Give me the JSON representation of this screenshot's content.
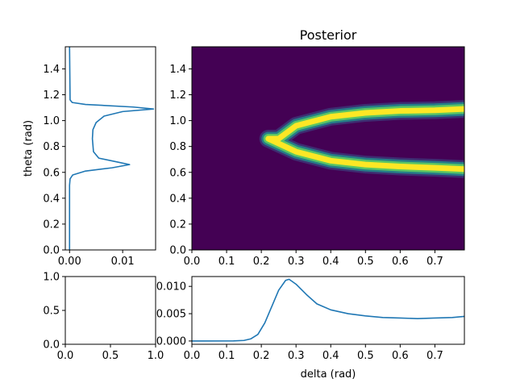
{
  "chart_data": [
    {
      "panel": "posterior-heatmap",
      "type": "heatmap",
      "title": "Posterior",
      "xlabel": "",
      "ylabel": "",
      "xlim": [
        0.0,
        0.785
      ],
      "ylim": [
        0.0,
        1.571
      ],
      "xticks": [
        "0.0",
        "0.1",
        "0.2",
        "0.3",
        "0.4",
        "0.5",
        "0.6",
        "0.7"
      ],
      "yticks": [
        "0.0",
        "0.2",
        "0.4",
        "0.6",
        "0.8",
        "1.0",
        "1.2",
        "1.4"
      ],
      "colormap": "viridis",
      "description_points": [
        {
          "delta": 0.22,
          "theta": 0.86
        },
        {
          "delta": 0.25,
          "theta": 0.86
        },
        {
          "delta": 0.3,
          "theta": 0.96
        },
        {
          "delta": 0.4,
          "theta": 1.03
        },
        {
          "delta": 0.5,
          "theta": 1.06
        },
        {
          "delta": 0.6,
          "theta": 1.075
        },
        {
          "delta": 0.7,
          "theta": 1.08
        },
        {
          "delta": 0.785,
          "theta": 1.09
        },
        {
          "delta": 0.3,
          "theta": 0.76
        },
        {
          "delta": 0.4,
          "theta": 0.69
        },
        {
          "delta": 0.5,
          "theta": 0.66
        },
        {
          "delta": 0.6,
          "theta": 0.645
        },
        {
          "delta": 0.7,
          "theta": 0.635
        },
        {
          "delta": 0.785,
          "theta": 0.625
        }
      ]
    },
    {
      "panel": "theta-marginal",
      "type": "line",
      "xlabel": "",
      "ylabel": "theta (rad)",
      "xlim": [
        -0.0008,
        0.0162
      ],
      "ylim": [
        0.0,
        1.571
      ],
      "xticks": [
        {
          "value": 0.0,
          "label": "0.00"
        },
        {
          "value": 0.01,
          "label": "0.01"
        }
      ],
      "yticks": [
        "0.0",
        "0.2",
        "0.4",
        "0.6",
        "0.8",
        "1.0",
        "1.2",
        "1.4"
      ],
      "series": [
        {
          "color": "#1f77b4",
          "points": [
            [
              0.0,
              0.0
            ],
            [
              0.0,
              0.5
            ],
            [
              0.0001,
              0.55
            ],
            [
              0.0006,
              0.58
            ],
            [
              0.003,
              0.61
            ],
            [
              0.008,
              0.635
            ],
            [
              0.0113,
              0.66
            ],
            [
              0.009,
              0.68
            ],
            [
              0.0055,
              0.71
            ],
            [
              0.0045,
              0.76
            ],
            [
              0.0043,
              0.86
            ],
            [
              0.0044,
              0.93
            ],
            [
              0.005,
              0.985
            ],
            [
              0.0065,
              1.035
            ],
            [
              0.01,
              1.07
            ],
            [
              0.0158,
              1.09
            ],
            [
              0.012,
              1.105
            ],
            [
              0.003,
              1.125
            ],
            [
              0.0005,
              1.14
            ],
            [
              0.0001,
              1.16
            ],
            [
              0.0,
              1.571
            ]
          ]
        }
      ]
    },
    {
      "panel": "empty-axes",
      "type": "line",
      "xlabel": "",
      "ylabel": "",
      "xlim": [
        0.0,
        1.0
      ],
      "ylim": [
        0.0,
        1.0
      ],
      "xticks": [
        "0.0",
        "0.5",
        "1.0"
      ],
      "yticks": [
        "0.0",
        "0.5",
        "1.0"
      ],
      "series": []
    },
    {
      "panel": "delta-marginal",
      "type": "line",
      "xlabel": "delta (rad)",
      "ylabel": "",
      "xlim": [
        0.0,
        0.785
      ],
      "ylim": [
        -0.0006,
        0.0118
      ],
      "xticks": [
        "0.0",
        "0.1",
        "0.2",
        "0.3",
        "0.4",
        "0.5",
        "0.6",
        "0.7"
      ],
      "yticks": [
        {
          "value": 0.0,
          "label": "0.000"
        },
        {
          "value": 0.005,
          "label": "0.005"
        },
        {
          "value": 0.01,
          "label": "0.010"
        }
      ],
      "series": [
        {
          "color": "#1f77b4",
          "points": [
            [
              0.0,
              0.0
            ],
            [
              0.12,
              2e-05
            ],
            [
              0.15,
              0.0001
            ],
            [
              0.17,
              0.0004
            ],
            [
              0.19,
              0.0012
            ],
            [
              0.21,
              0.0033
            ],
            [
              0.23,
              0.0063
            ],
            [
              0.25,
              0.0093
            ],
            [
              0.27,
              0.0111
            ],
            [
              0.28,
              0.0113
            ],
            [
              0.3,
              0.0104
            ],
            [
              0.33,
              0.0085
            ],
            [
              0.36,
              0.0068
            ],
            [
              0.4,
              0.0057
            ],
            [
              0.45,
              0.005
            ],
            [
              0.5,
              0.0046
            ],
            [
              0.55,
              0.0043
            ],
            [
              0.6,
              0.0042
            ],
            [
              0.65,
              0.0041
            ],
            [
              0.7,
              0.0042
            ],
            [
              0.75,
              0.0043
            ],
            [
              0.785,
              0.0045
            ]
          ]
        }
      ]
    }
  ]
}
